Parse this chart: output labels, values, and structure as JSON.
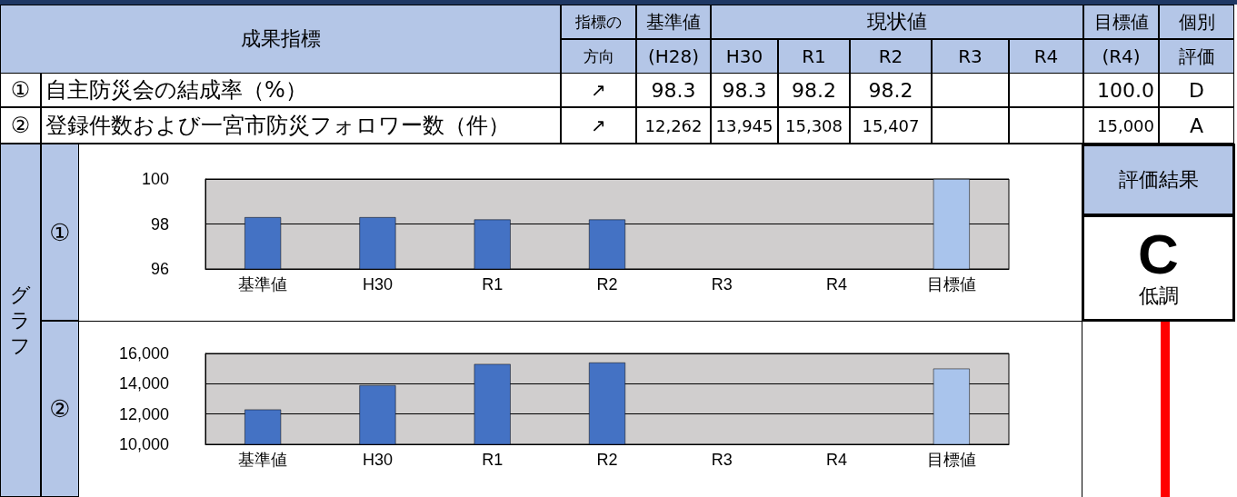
{
  "chart_data": [
    {
      "type": "other",
      "annotations": [
        "成果指標",
        "指標の",
        "方向",
        "基準値",
        "(H28)",
        "現状値",
        "H30",
        "R1",
        "R2",
        "R3",
        "R4",
        "目標値",
        "(R4)",
        "個別",
        "評価",
        "グラフ",
        "評価結果",
        "C",
        "低調",
        "①",
        "自主防災会の結成率（%）",
        "↗",
        "98.3",
        "98.3",
        "98.2",
        "98.2",
        "100.0",
        "D",
        "②",
        "登録件数および一宮市防災フォロワー数（件）",
        "↗",
        "12,262",
        "13,945",
        "15,308",
        "15,407",
        "15,000",
        "A"
      ]
    },
    {
      "type": "bar",
      "categories": [
        "基準値",
        "H30",
        "R1",
        "R2",
        "R3",
        "R4",
        "目標値"
      ],
      "values": [
        98.3,
        98.3,
        98.2,
        98.2,
        null,
        null,
        100.0
      ],
      "colors": [
        "#4472c4",
        "#4472c4",
        "#4472c4",
        "#4472c4",
        "#4472c4",
        "#4472c4",
        "#a9c4ec"
      ],
      "ylim": [
        96,
        100
      ],
      "yticks": [
        96,
        98,
        100
      ],
      "grid": "y"
    },
    {
      "type": "bar",
      "categories": [
        "基準値",
        "H30",
        "R1",
        "R2",
        "R3",
        "R4",
        "目標値"
      ],
      "values": [
        12300,
        13900,
        15300,
        15400,
        null,
        null,
        15000
      ],
      "colors": [
        "#4472c4",
        "#4472c4",
        "#4472c4",
        "#4472c4",
        "#4472c4",
        "#4472c4",
        "#a9c4ec"
      ],
      "ylim": [
        10000,
        16000
      ],
      "yticks": [
        {
          "value": 10000,
          "label": "10,000"
        },
        {
          "value": 12000,
          "label": "12,000"
        },
        {
          "value": 14000,
          "label": "14,000"
        },
        {
          "value": 16000,
          "label": "16,000"
        }
      ],
      "grid": "y"
    }
  ]
}
